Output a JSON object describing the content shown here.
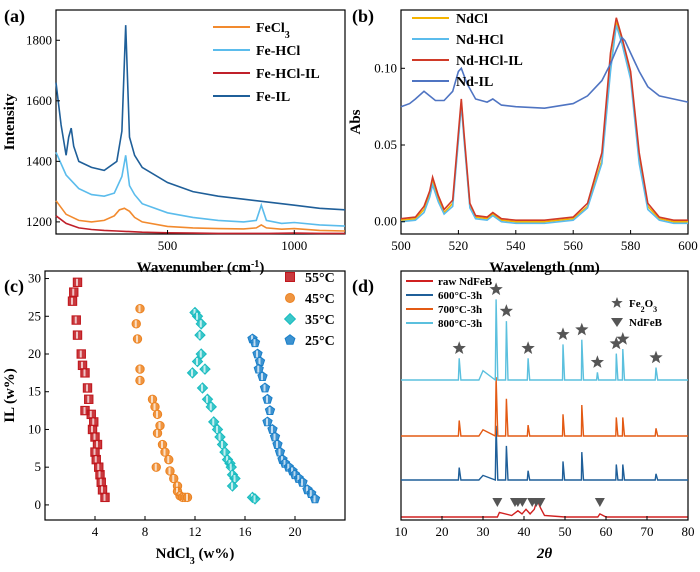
{
  "chart_data": [
    {
      "panel": "(a)",
      "type": "line",
      "xlabel": "Wavenumber (cm",
      "xlabel_sup": "-1",
      "xlabel_end": ")",
      "ylabel": "Intensity",
      "xlim": [
        60,
        1200
      ],
      "ylim": [
        1160,
        1900
      ],
      "xticks": [
        500,
        1000
      ],
      "yticks": [
        1200,
        1400,
        1600,
        1800
      ],
      "legend_position": "top-right",
      "series": [
        {
          "name": "FeCl3",
          "label_main": "FeCl",
          "label_sub": "3",
          "color": "#f28a2e",
          "x": [
            60,
            100,
            150,
            200,
            250,
            290,
            310,
            330,
            350,
            370,
            400,
            500,
            600,
            700,
            800,
            850,
            870,
            890,
            950,
            1000,
            1100,
            1200
          ],
          "y": [
            1270,
            1225,
            1205,
            1200,
            1205,
            1220,
            1240,
            1245,
            1235,
            1215,
            1200,
            1185,
            1180,
            1178,
            1177,
            1180,
            1190,
            1180,
            1176,
            1178,
            1172,
            1170
          ]
        },
        {
          "name": "Fe-HCl",
          "color": "#5bbcec",
          "x": [
            60,
            100,
            150,
            200,
            250,
            290,
            320,
            335,
            350,
            370,
            400,
            500,
            600,
            700,
            800,
            850,
            870,
            890,
            950,
            1000,
            1100,
            1200
          ],
          "y": [
            1430,
            1355,
            1310,
            1290,
            1285,
            1295,
            1350,
            1420,
            1320,
            1290,
            1260,
            1230,
            1215,
            1205,
            1200,
            1205,
            1255,
            1205,
            1195,
            1198,
            1190,
            1186
          ]
        },
        {
          "name": "Fe-HCl-IL",
          "color": "#c0202a",
          "x": [
            60,
            100,
            150,
            200,
            250,
            300,
            400,
            500,
            600,
            700,
            800,
            900,
            1000,
            1100,
            1200
          ],
          "y": [
            1220,
            1195,
            1180,
            1175,
            1172,
            1170,
            1166,
            1164,
            1163,
            1162,
            1162,
            1162,
            1163,
            1162,
            1162
          ]
        },
        {
          "name": "Fe-IL",
          "color": "#1f5f99",
          "x": [
            60,
            80,
            100,
            110,
            120,
            130,
            150,
            200,
            250,
            300,
            320,
            335,
            350,
            370,
            400,
            500,
            600,
            700,
            800,
            900,
            1000,
            1100,
            1200
          ],
          "y": [
            1660,
            1520,
            1420,
            1480,
            1510,
            1450,
            1400,
            1380,
            1370,
            1400,
            1500,
            1850,
            1480,
            1420,
            1380,
            1330,
            1300,
            1285,
            1275,
            1265,
            1255,
            1245,
            1240
          ]
        }
      ]
    },
    {
      "panel": "(b)",
      "type": "line",
      "xlabel": "Wavelength (nm)",
      "ylabel": "Abs",
      "xlim": [
        500,
        600
      ],
      "ylim": [
        -0.008,
        0.138
      ],
      "xticks": [
        500,
        520,
        540,
        560,
        580,
        600
      ],
      "yticks": [
        0.0,
        0.05,
        0.1
      ],
      "ytick_labels": [
        "0.00",
        "0.05",
        "0.10"
      ],
      "legend_position": "top-left",
      "series": [
        {
          "name": "NdCl",
          "color": "#f5b400",
          "x": [
            500,
            505,
            508,
            510,
            511,
            513,
            515,
            518,
            520,
            521,
            522,
            524,
            526,
            530,
            532,
            535,
            540,
            550,
            560,
            565,
            570,
            573,
            575,
            577,
            580,
            583,
            586,
            590,
            595,
            600
          ],
          "y": [
            0.001,
            0.002,
            0.008,
            0.018,
            0.026,
            0.015,
            0.006,
            0.012,
            0.055,
            0.078,
            0.055,
            0.01,
            0.003,
            0.002,
            0.005,
            0.001,
            0.0,
            0.0,
            0.002,
            0.01,
            0.04,
            0.1,
            0.13,
            0.118,
            0.095,
            0.04,
            0.01,
            0.002,
            0.0,
            0.0
          ]
        },
        {
          "name": "Nd-HCl",
          "color": "#5bbcec",
          "x": [
            500,
            505,
            508,
            510,
            511,
            513,
            515,
            518,
            520,
            521,
            522,
            524,
            526,
            530,
            532,
            535,
            540,
            550,
            560,
            565,
            570,
            573,
            575,
            577,
            580,
            583,
            586,
            590,
            595,
            600
          ],
          "y": [
            0.0,
            0.001,
            0.006,
            0.016,
            0.024,
            0.013,
            0.005,
            0.01,
            0.053,
            0.076,
            0.053,
            0.009,
            0.002,
            0.001,
            0.004,
            0.0,
            -0.001,
            -0.001,
            0.001,
            0.009,
            0.038,
            0.098,
            0.128,
            0.116,
            0.093,
            0.038,
            0.008,
            0.001,
            -0.001,
            -0.001
          ]
        },
        {
          "name": "Nd-HCl-IL",
          "color": "#d03a28",
          "x": [
            500,
            505,
            508,
            510,
            511,
            513,
            515,
            518,
            520,
            521,
            522,
            524,
            526,
            530,
            532,
            535,
            540,
            550,
            560,
            565,
            570,
            573,
            575,
            577,
            580,
            583,
            586,
            590,
            595,
            600
          ],
          "y": [
            0.002,
            0.003,
            0.01,
            0.02,
            0.029,
            0.017,
            0.008,
            0.014,
            0.058,
            0.08,
            0.057,
            0.012,
            0.004,
            0.003,
            0.006,
            0.002,
            0.001,
            0.001,
            0.003,
            0.012,
            0.045,
            0.11,
            0.133,
            0.12,
            0.098,
            0.045,
            0.012,
            0.003,
            0.001,
            0.001
          ]
        },
        {
          "name": "Nd-IL",
          "color": "#4f74c2",
          "x": [
            500,
            503,
            505,
            508,
            510,
            512,
            515,
            518,
            520,
            521,
            523,
            526,
            530,
            532,
            535,
            540,
            550,
            560,
            565,
            570,
            573,
            575,
            577,
            578,
            580,
            583,
            586,
            590,
            595,
            600
          ],
          "y": [
            0.075,
            0.077,
            0.08,
            0.085,
            0.082,
            0.079,
            0.079,
            0.085,
            0.098,
            0.1,
            0.09,
            0.08,
            0.078,
            0.08,
            0.076,
            0.075,
            0.074,
            0.077,
            0.082,
            0.092,
            0.103,
            0.112,
            0.12,
            0.118,
            0.11,
            0.098,
            0.088,
            0.082,
            0.08,
            0.078
          ]
        }
      ]
    },
    {
      "panel": "(c)",
      "type": "scatter",
      "xlabel": "NdCl",
      "xlabel_sub": "3",
      "xlabel_end": " (w%)",
      "ylabel": "IL (w%)",
      "xlim": [
        0,
        24
      ],
      "ylim": [
        -2,
        31
      ],
      "xticks": [
        4,
        8,
        12,
        16,
        20
      ],
      "yticks": [
        0,
        5,
        10,
        15,
        20,
        25,
        30
      ],
      "legend_position": "top-right",
      "series": [
        {
          "name": "55°C",
          "color": "#c0161c",
          "marker": "square",
          "x": [
            2.6,
            2.3,
            2.2,
            2.5,
            2.6,
            2.9,
            3.0,
            3.2,
            3.4,
            3.5,
            3.2,
            3.7,
            3.9,
            3.8,
            4.0,
            4.2,
            4.0,
            4.1,
            4.3,
            4.4,
            4.5,
            4.6,
            4.8
          ],
          "y": [
            29.5,
            28.2,
            27.0,
            24.5,
            22.5,
            20.0,
            18.5,
            17.5,
            15.5,
            14.0,
            12.5,
            12.0,
            11.0,
            10.0,
            9.0,
            8.0,
            7.0,
            6.0,
            5.0,
            4.0,
            3.0,
            2.0,
            1.0
          ]
        },
        {
          "name": "45°C",
          "color": "#ec8220",
          "marker": "circle",
          "x": [
            7.6,
            7.3,
            7.4,
            7.6,
            7.6,
            8.6,
            8.8,
            9.0,
            9.2,
            9.0,
            9.4,
            9.6,
            9.9,
            10.0,
            10.3,
            10.6,
            10.6,
            10.8,
            11.0,
            11.2,
            11.4,
            8.9
          ],
          "y": [
            26.0,
            24.0,
            22.0,
            18.0,
            16.5,
            14.0,
            13.0,
            12.0,
            10.5,
            9.5,
            8.0,
            7.0,
            6.0,
            4.5,
            3.5,
            2.5,
            1.8,
            1.2,
            1.0,
            1.0,
            1.0,
            5.0
          ]
        },
        {
          "name": "35°C",
          "color": "#19bcc0",
          "marker": "diamond",
          "x": [
            12.0,
            12.2,
            12.5,
            12.4,
            12.5,
            12.2,
            12.8,
            11.8,
            12.6,
            13.0,
            13.3,
            13.5,
            13.8,
            14.0,
            14.2,
            14.4,
            14.6,
            14.8,
            14.9,
            15.0,
            15.2,
            15.0,
            16.6,
            16.8
          ],
          "y": [
            25.5,
            25.0,
            24.0,
            22.5,
            20.0,
            19.0,
            18.0,
            17.5,
            15.5,
            14.0,
            13.0,
            11.0,
            10.0,
            9.0,
            8.0,
            7.0,
            6.0,
            5.5,
            5.0,
            4.0,
            3.5,
            2.5,
            1.0,
            0.8
          ]
        },
        {
          "name": "25°C",
          "color": "#1a7fc8",
          "marker": "pentagon",
          "x": [
            16.6,
            16.8,
            17.0,
            17.2,
            17.1,
            17.4,
            17.6,
            17.8,
            18.0,
            17.8,
            18.2,
            18.4,
            18.6,
            18.8,
            19.0,
            19.2,
            19.5,
            19.8,
            20.0,
            20.3,
            20.6,
            21.0,
            21.3,
            21.6
          ],
          "y": [
            22.0,
            21.5,
            20.0,
            19.0,
            18.0,
            17.0,
            15.5,
            14.0,
            12.5,
            11.0,
            10.0,
            9.0,
            8.0,
            7.0,
            6.0,
            5.5,
            5.0,
            4.5,
            4.0,
            3.5,
            3.0,
            2.0,
            1.5,
            0.8
          ]
        }
      ]
    },
    {
      "panel": "(d)",
      "type": "line",
      "xlabel": "2θ",
      "xlim": [
        10,
        80
      ],
      "xticks": [
        10,
        20,
        30,
        40,
        50,
        60,
        70,
        80
      ],
      "legend_position": "top-left",
      "series": [
        {
          "name": "raw NdFeB",
          "color": "#d02020",
          "offset": 0,
          "x": [
            10,
            30,
            33.5,
            34,
            37,
            38.5,
            39.5,
            40.5,
            41.5,
            42.5,
            43.2,
            44,
            45,
            50,
            58,
            58.5,
            60,
            70,
            80
          ],
          "y": [
            0,
            0,
            0,
            3,
            1,
            4,
            2,
            5,
            2,
            5,
            11,
            6,
            1,
            0,
            0,
            2,
            0,
            0,
            0
          ]
        },
        {
          "name": "600°C-3h",
          "color": "#1f5f99",
          "offset": 1,
          "x": [
            10,
            24,
            24.2,
            24.6,
            29,
            30,
            33,
            33.2,
            33.6,
            35.5,
            35.7,
            36.1,
            40.8,
            41,
            41.4,
            49.4,
            49.5,
            49.9,
            54,
            54.1,
            54.5,
            62.4,
            62.5,
            62.9,
            64,
            64.1,
            64.5,
            72,
            72.2,
            72.6,
            80
          ],
          "y": [
            0,
            0,
            8,
            0,
            0,
            3,
            0,
            35,
            0,
            0,
            22,
            0,
            0,
            6,
            0,
            0,
            12,
            0,
            0,
            18,
            0,
            0,
            10,
            0,
            0,
            10,
            0,
            0,
            4,
            0,
            0
          ]
        },
        {
          "name": "700°C-3h",
          "color": "#e35a14",
          "offset": 2,
          "x": [
            10,
            24,
            24.2,
            24.6,
            29,
            30,
            33,
            33.2,
            33.6,
            35.5,
            35.7,
            36.1,
            40.8,
            41,
            41.4,
            49.4,
            49.5,
            49.9,
            54,
            54.1,
            54.5,
            62.4,
            62.5,
            62.9,
            64,
            64.1,
            64.5,
            72,
            72.2,
            72.6,
            80
          ],
          "y": [
            0,
            0,
            10,
            0,
            0,
            4,
            0,
            38,
            0,
            0,
            24,
            0,
            0,
            7,
            0,
            0,
            14,
            0,
            0,
            20,
            0,
            0,
            12,
            0,
            0,
            12,
            0,
            0,
            5,
            0,
            0
          ]
        },
        {
          "name": "800°C-3h",
          "color": "#5bc0de",
          "offset": 3,
          "x": [
            10,
            24,
            24.2,
            24.6,
            29,
            30,
            33,
            33.2,
            33.6,
            35.5,
            35.7,
            36.1,
            40.8,
            41,
            41.4,
            49.4,
            49.5,
            49.9,
            54,
            54.1,
            54.5,
            57.7,
            57.9,
            58.2,
            62.4,
            62.5,
            62.9,
            64,
            64.1,
            64.5,
            72,
            72.2,
            72.6,
            80
          ],
          "y": [
            0,
            0,
            14,
            0,
            0,
            6,
            0,
            52,
            0,
            0,
            38,
            0,
            0,
            14,
            0,
            0,
            23,
            0,
            0,
            26,
            0,
            0,
            5,
            0,
            0,
            17,
            0,
            0,
            20,
            0,
            0,
            8,
            0,
            0
          ]
        }
      ],
      "markers": [
        {
          "name": "Fe2O3",
          "label_main": "Fe",
          "label_sub1": "2",
          "label_mid": "O",
          "label_sub2": "3",
          "symbol": "star",
          "x": [
            24.2,
            33.2,
            35.7,
            41.0,
            49.5,
            54.1,
            57.9,
            62.5,
            64.1,
            72.2
          ]
        },
        {
          "name": "NdFeB",
          "symbol": "triangle-down",
          "x": [
            33.5,
            37.8,
            38.5,
            39.6,
            42.0,
            43.0,
            44.0,
            58.5
          ]
        }
      ]
    }
  ]
}
